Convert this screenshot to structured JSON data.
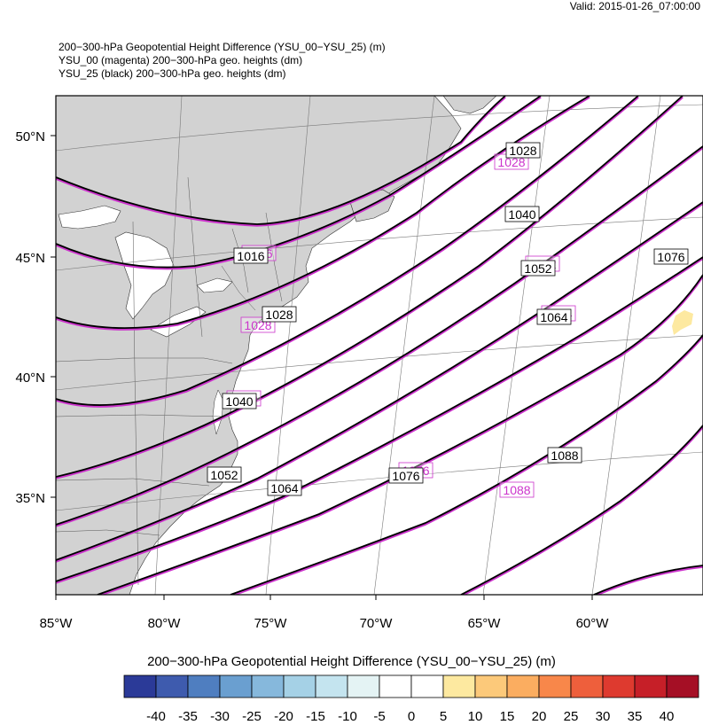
{
  "valid": "Valid: 2015-01-26_07:00:00",
  "titles": [
    "200−300-hPa Geopotential Height Difference (YSU_00−YSU_25)   (m)",
    "YSU_00 (magenta) 200−300-hPa geo. heights   (dm)",
    "YSU_25 (black) 200−300-hPa geo. heights   (dm)"
  ],
  "lat_labels": [
    "50°N",
    "45°N",
    "40°N",
    "35°N"
  ],
  "lon_labels": [
    "85°W",
    "80°W",
    "75°W",
    "70°W",
    "65°W",
    "60°W"
  ],
  "black_contour_labels": [
    "1016",
    "1028",
    "1028",
    "1040",
    "1040",
    "1052",
    "1052",
    "1064",
    "1064",
    "1076",
    "1076",
    "1088"
  ],
  "magenta_contour_labels": [
    "1028",
    "1016",
    "1028",
    "1040",
    "1052",
    "1064",
    "1076",
    "1088"
  ],
  "colorbar": {
    "title": "200−300-hPa Geopotential Height Difference (YSU_00−YSU_25)  (m)",
    "colors": [
      "#2b3a98",
      "#3e5bae",
      "#4f7ec0",
      "#6a9fd0",
      "#86b8dc",
      "#a5d1e6",
      "#c4e4ef",
      "#e4f3f4",
      "#ffffff",
      "#ffffff",
      "#fde9a0",
      "#fcc97a",
      "#fbad60",
      "#f8874a",
      "#ee5f3c",
      "#de3a2f",
      "#c61f28",
      "#a50f25"
    ],
    "ticks": [
      "-40",
      "-35",
      "-30",
      "-25",
      "-20",
      "-15",
      "-10",
      "-5",
      "0",
      "5",
      "10",
      "15",
      "20",
      "25",
      "30",
      "35",
      "40"
    ]
  },
  "colors": {
    "land": "#d2d2d2",
    "magenta": "#cc33cc",
    "black_contour": "#000000",
    "positive_patch": "#fde9a0"
  }
}
